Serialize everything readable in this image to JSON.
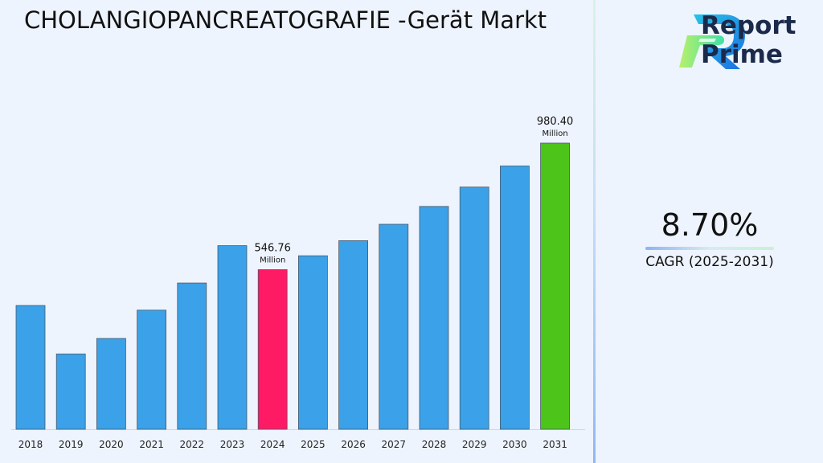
{
  "header": {
    "title": "CHOLANGIOPANCREATOGRAFIE -Gerät Markt"
  },
  "logo": {
    "line1": "Report",
    "line2": "Prime"
  },
  "cagr": {
    "value": "8.70%",
    "label": "CAGR (2025-2031)"
  },
  "chart_data": {
    "type": "bar",
    "title": "CHOLANGIOPANCREATOGRAFIE -Gerät Markt",
    "xlabel": "",
    "ylabel": "",
    "unit": "Million",
    "categories": [
      "2018",
      "2019",
      "2020",
      "2021",
      "2022",
      "2023",
      "2024",
      "2025",
      "2026",
      "2027",
      "2028",
      "2029",
      "2030",
      "2031"
    ],
    "values": [
      424,
      258,
      311,
      408,
      501,
      629,
      546.76,
      594.33,
      646.04,
      702.24,
      763.34,
      829.75,
      901.94,
      980.4
    ],
    "ylim": [
      0,
      1000
    ],
    "grid": false,
    "legend": "none",
    "colors": {
      "default": "#3ba1e8",
      "highlight_2024": "#ff1a66",
      "highlight_2031": "#4cc41a"
    },
    "data_labels": [
      {
        "category": "2024",
        "value": "546.76",
        "unit": "Million"
      },
      {
        "category": "2031",
        "value": "980.40",
        "unit": "Million"
      }
    ]
  }
}
